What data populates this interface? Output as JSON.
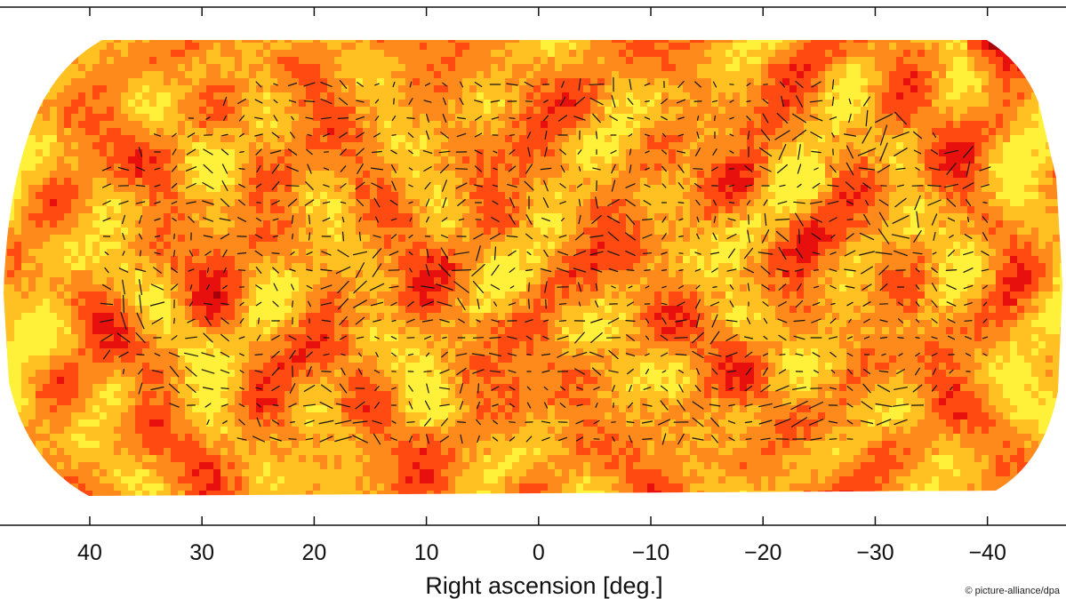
{
  "chart_data": {
    "type": "heatmap",
    "title": "",
    "xlabel": "Right ascension [deg.]",
    "ylabel": "",
    "x_direction": "decreasing to the right",
    "xlim": [
      48,
      -47
    ],
    "x_ticks": [
      40,
      30,
      20,
      10,
      0,
      -10,
      -20,
      -30,
      -40
    ],
    "x_tick_labels": [
      "40",
      "30",
      "20",
      "10",
      "0",
      "−10",
      "−20",
      "−30",
      "−40"
    ],
    "overlay": "polarization line segments",
    "colormap": [
      "#a8000a",
      "#e8100c",
      "#ff4a12",
      "#ff8a1c",
      "#ffc021",
      "#fff03a"
    ],
    "background": "#ffffff",
    "axis_color": "#111111",
    "segment_color": "#151515"
  },
  "credit": "© picture-alliance/dpa"
}
